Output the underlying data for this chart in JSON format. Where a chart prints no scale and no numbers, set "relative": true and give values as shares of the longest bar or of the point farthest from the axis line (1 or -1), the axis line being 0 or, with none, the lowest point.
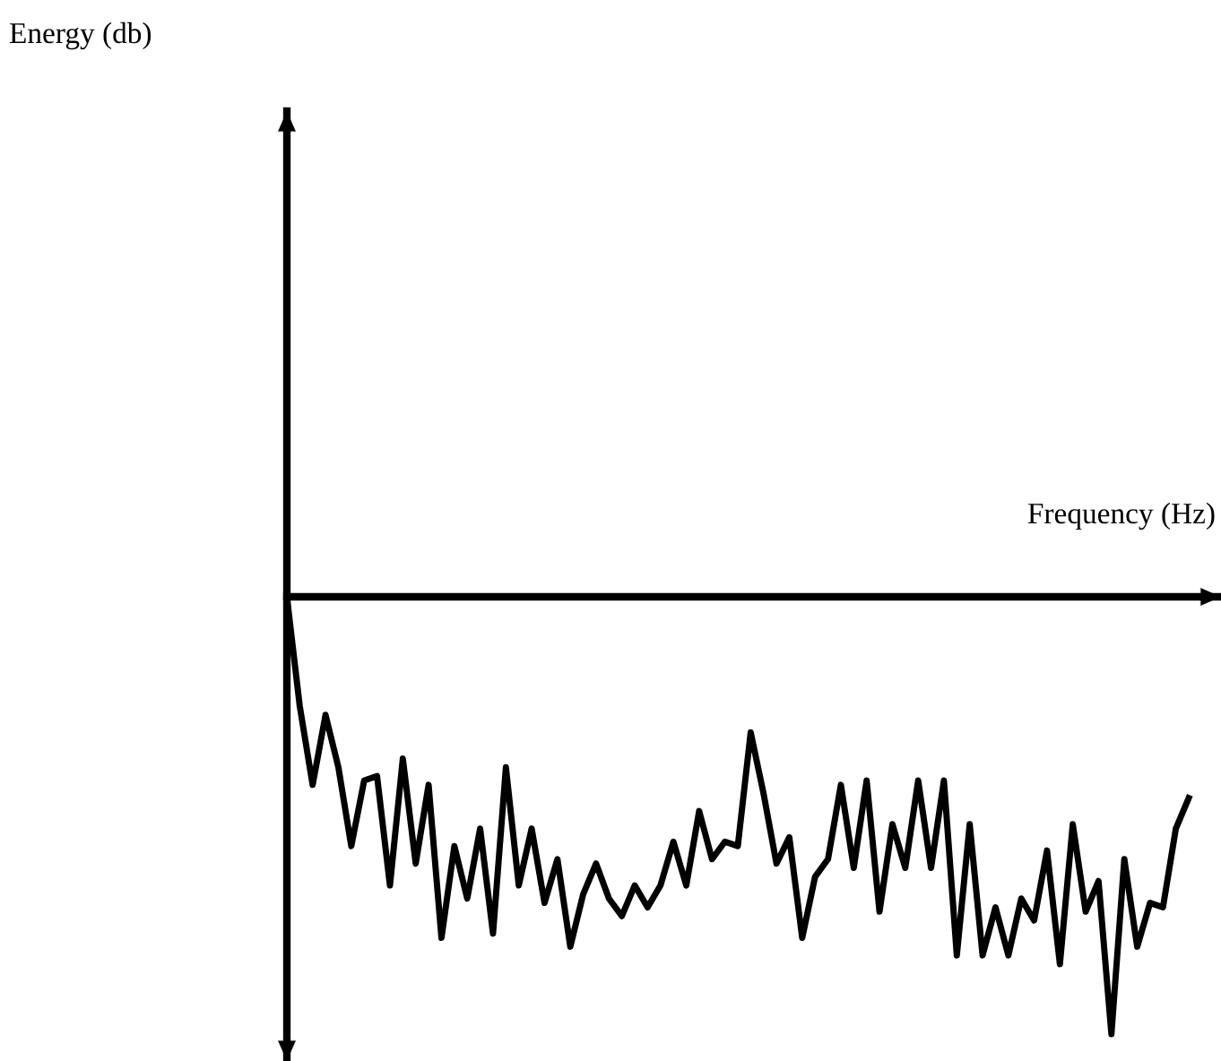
{
  "chart_data": {
    "type": "line",
    "relative": true,
    "xlabel": "Frequency (Hz)",
    "annotations": [
      "Energy (db)"
    ],
    "categories": [
      null,
      null,
      null,
      null,
      null,
      null,
      null,
      null,
      null,
      null,
      null,
      null,
      null,
      null,
      null,
      null,
      null,
      null,
      null,
      null,
      null,
      null,
      null,
      null,
      null,
      null,
      null,
      null,
      null,
      null,
      null,
      null,
      null,
      null,
      null,
      null,
      null,
      null,
      null,
      null,
      null,
      null,
      null,
      null,
      null,
      null,
      null,
      null,
      null,
      null,
      null,
      null,
      null,
      null,
      null,
      null,
      null,
      null,
      null,
      null,
      null,
      null,
      null,
      null,
      null,
      null,
      null,
      null,
      null,
      null,
      null
    ],
    "series": [
      {
        "color": "#000000",
        "values": [
          0,
          -0.25,
          -0.43,
          -0.27,
          -0.39,
          -0.57,
          -0.42,
          -0.41,
          -0.66,
          -0.37,
          -0.61,
          -0.43,
          -0.78,
          -0.57,
          -0.69,
          -0.53,
          -0.77,
          -0.39,
          -0.66,
          -0.53,
          -0.7,
          -0.6,
          -0.8,
          -0.68,
          -0.61,
          -0.69,
          -0.73,
          -0.66,
          -0.71,
          -0.66,
          -0.56,
          -0.66,
          -0.49,
          -0.6,
          -0.56,
          -0.57,
          -0.31,
          -0.45,
          -0.61,
          -0.55,
          -0.78,
          -0.64,
          -0.6,
          -0.43,
          -0.62,
          -0.42,
          -0.72,
          -0.52,
          -0.62,
          -0.42,
          -0.62,
          -0.42,
          -0.82,
          -0.52,
          -0.82,
          -0.71,
          -0.82,
          -0.69,
          -0.74,
          -0.58,
          -0.84,
          -0.52,
          -0.72,
          -0.65,
          -1,
          -0.6,
          -0.8,
          -0.7,
          -0.71,
          -0.53,
          -0.46
        ]
      }
    ],
    "marker": "none",
    "line_style": "solid"
  }
}
